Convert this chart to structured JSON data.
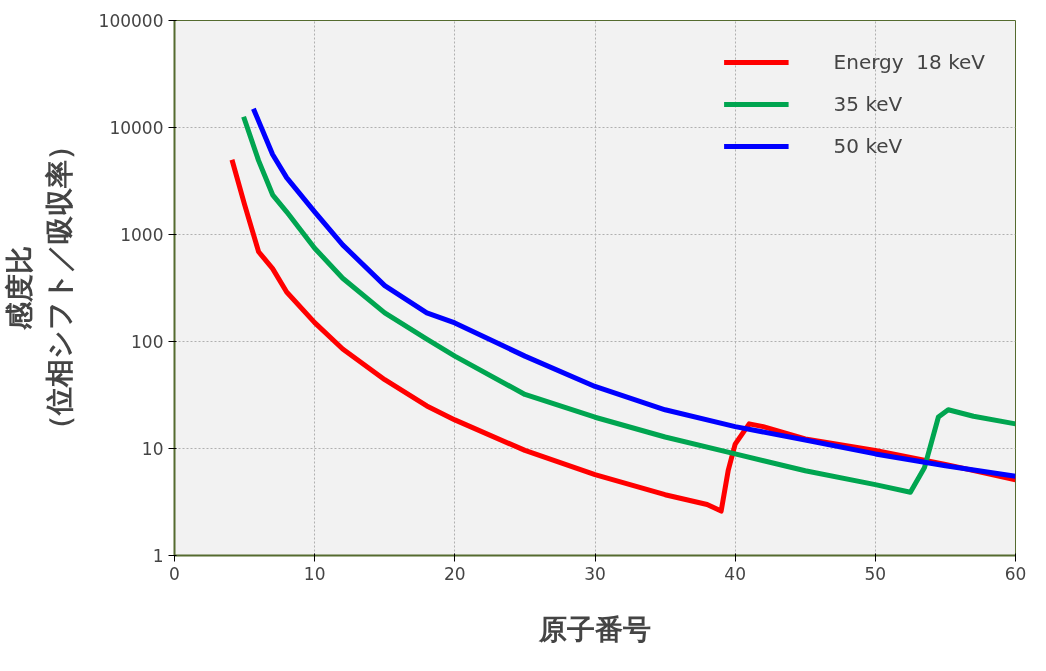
{
  "chart_data": {
    "type": "line",
    "xlabel": "原子番号",
    "ylabel": "感度比（位相シフト／吸収率）",
    "xlim": [
      0,
      60
    ],
    "xticks": [
      0,
      10,
      20,
      30,
      40,
      50,
      60
    ],
    "ylim": [
      1,
      100000
    ],
    "yticks": [
      1,
      10,
      100,
      1000,
      10000,
      100000
    ],
    "log": "y",
    "grid": true,
    "legend": "top right",
    "line_style": "solid",
    "series": [
      {
        "name": "Energy  18 keV",
        "color": "#ff0000",
        "x": [
          4.1,
          5,
          6,
          7,
          8,
          10,
          12,
          15,
          18,
          20,
          25,
          30,
          35,
          38,
          39,
          39.5,
          40,
          41,
          42,
          45,
          50,
          55,
          60
        ],
        "values": [
          5000,
          1900,
          690,
          480,
          290,
          150,
          85,
          44,
          25,
          18.5,
          9.6,
          5.7,
          3.7,
          3.0,
          2.6,
          6.2,
          11,
          17,
          16,
          12.3,
          9.6,
          7.1,
          5.1
        ]
      },
      {
        "name": "35 keV",
        "color": "#00a550",
        "x": [
          4.93,
          6,
          7,
          8,
          10,
          12,
          15,
          18,
          20,
          25,
          30,
          35,
          40,
          45,
          50,
          52.5,
          53.5,
          54.5,
          55.2,
          57,
          60
        ],
        "values": [
          12600,
          4900,
          2350,
          1630,
          745,
          390,
          185,
          105,
          73,
          32,
          19.6,
          12.8,
          8.9,
          6.2,
          4.6,
          3.9,
          6.6,
          19.7,
          23,
          20,
          17
        ]
      },
      {
        "name": "50 keV",
        "color": "#0000ff",
        "x": [
          5.63,
          7,
          8,
          10,
          12,
          15,
          18,
          20,
          25,
          30,
          35,
          40,
          45,
          50,
          55,
          60
        ],
        "values": [
          15000,
          5600,
          3400,
          1630,
          800,
          333,
          185,
          149,
          73,
          38,
          23,
          16,
          12,
          8.9,
          6.9,
          5.5
        ]
      }
    ]
  }
}
